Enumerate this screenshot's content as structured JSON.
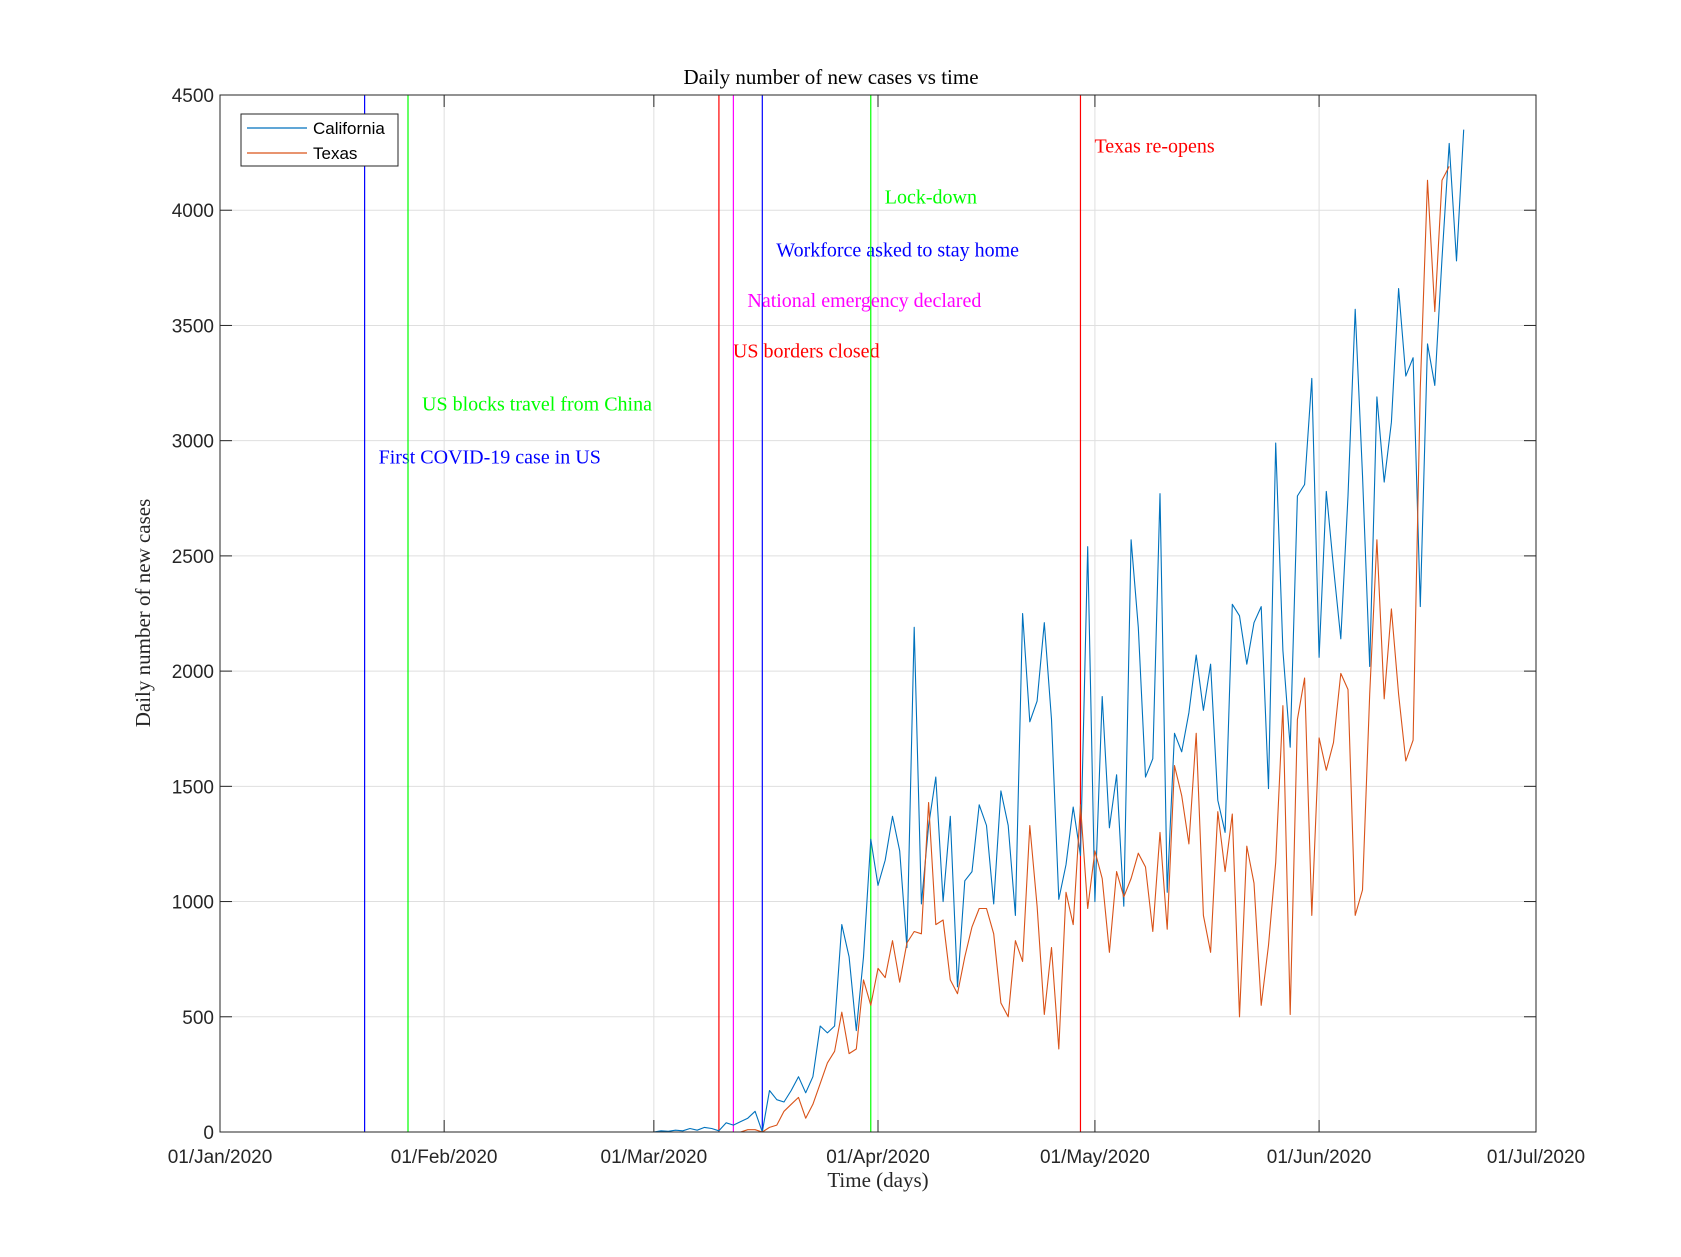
{
  "chart_data": {
    "type": "line",
    "title": "Daily number of new cases vs time",
    "xlabel": "Time (days)",
    "ylabel": "Daily number of new cases",
    "xlim": [
      "2020-01-01",
      "2020-07-01"
    ],
    "ylim": [
      0,
      4500
    ],
    "grid": true,
    "legend_position": "top-left",
    "x_tick_labels": [
      "01/Jan/2020",
      "01/Feb/2020",
      "01/Mar/2020",
      "01/Apr/2020",
      "01/May/2020",
      "01/Jun/2020",
      "01/Jul/2020"
    ],
    "x_ticks": [
      "2020-01-01",
      "2020-02-01",
      "2020-03-01",
      "2020-04-01",
      "2020-05-01",
      "2020-06-01",
      "2020-07-01"
    ],
    "y_ticks": [
      0,
      500,
      1000,
      1500,
      2000,
      2500,
      3000,
      3500,
      4000,
      4500
    ],
    "x_start": "2020-01-22",
    "series": [
      {
        "name": "California",
        "color": "#0072BD",
        "values": [
          0,
          0,
          0,
          0,
          0,
          0,
          0,
          0,
          0,
          0,
          0,
          0,
          0,
          0,
          0,
          0,
          0,
          0,
          0,
          0,
          0,
          0,
          0,
          0,
          0,
          0,
          0,
          0,
          0,
          0,
          0,
          0,
          0,
          0,
          0,
          0,
          0,
          0,
          0,
          0,
          5,
          3,
          8,
          5,
          15,
          8,
          20,
          15,
          5,
          40,
          30,
          45,
          60,
          90,
          0,
          180,
          140,
          130,
          180,
          240,
          170,
          240,
          460,
          430,
          460,
          900,
          760,
          440,
          760,
          1270,
          1070,
          1180,
          1370,
          1220,
          800,
          2190,
          990,
          1330,
          1540,
          1000,
          1370,
          630,
          1090,
          1130,
          1420,
          1330,
          990,
          1480,
          1330,
          940,
          2250,
          1780,
          1870,
          2210,
          1790,
          1010,
          1160,
          1410,
          1200,
          2540,
          1000,
          1890,
          1320,
          1550,
          980,
          2570,
          2190,
          1540,
          1620,
          2770,
          1040,
          1730,
          1650,
          1820,
          2070,
          1830,
          2030,
          1440,
          1300,
          2290,
          2240,
          2030,
          2210,
          2280,
          1490,
          2990,
          2090,
          1670,
          2760,
          2810,
          3270,
          2060,
          2780,
          2450,
          2140,
          2760,
          3570,
          2850,
          2020,
          3190,
          2820,
          3080,
          3660,
          3280,
          3360,
          2280,
          3420,
          3240,
          3790,
          4290,
          3780,
          4350
        ]
      },
      {
        "name": "Texas",
        "color": "#D95319",
        "values": [
          0,
          0,
          0,
          0,
          0,
          0,
          0,
          0,
          0,
          0,
          0,
          0,
          0,
          0,
          0,
          0,
          0,
          0,
          0,
          0,
          0,
          0,
          0,
          0,
          0,
          0,
          0,
          0,
          0,
          0,
          0,
          0,
          0,
          0,
          0,
          0,
          0,
          0,
          0,
          0,
          0,
          0,
          0,
          0,
          0,
          0,
          0,
          0,
          0,
          0,
          0,
          0,
          10,
          10,
          0,
          20,
          30,
          90,
          120,
          150,
          60,
          120,
          210,
          300,
          350,
          520,
          340,
          360,
          660,
          550,
          710,
          670,
          830,
          650,
          820,
          870,
          860,
          1430,
          900,
          920,
          660,
          600,
          760,
          890,
          970,
          970,
          860,
          560,
          500,
          830,
          740,
          1330,
          980,
          510,
          800,
          360,
          1040,
          900,
          1420,
          970,
          1220,
          1100,
          780,
          1130,
          1020,
          1100,
          1210,
          1150,
          870,
          1300,
          880,
          1590,
          1460,
          1250,
          1730,
          940,
          780,
          1390,
          1130,
          1380,
          500,
          1240,
          1080,
          550,
          810,
          1170,
          1850,
          510,
          1790,
          1970,
          940,
          1710,
          1570,
          1690,
          1990,
          1920,
          940,
          1050,
          1900,
          2570,
          1880,
          2270,
          1900,
          1610,
          1700,
          3230,
          4130,
          3560,
          4130,
          4190
        ]
      }
    ],
    "events": [
      {
        "date": "2020-01-21",
        "label": "First COVID-19 case in US",
        "color": "#0000FF",
        "y": 2900
      },
      {
        "date": "2020-01-27",
        "label": "US blocks travel from China",
        "color": "#00FF00",
        "y": 3130
      },
      {
        "date": "2020-03-10",
        "label": "US borders closed",
        "color": "#FF0000",
        "y": 3360
      },
      {
        "date": "2020-03-12",
        "label": "National emergency declared",
        "color": "#FF00FF",
        "y": 3580
      },
      {
        "date": "2020-03-16",
        "label": "Workforce asked to stay home",
        "color": "#0000FF",
        "y": 3800
      },
      {
        "date": "2020-03-31",
        "label": "Lock-down",
        "color": "#00FF00",
        "y": 4030
      },
      {
        "date": "2020-04-29",
        "label": "Texas re-opens",
        "color": "#FF0000",
        "y": 4250
      }
    ]
  }
}
